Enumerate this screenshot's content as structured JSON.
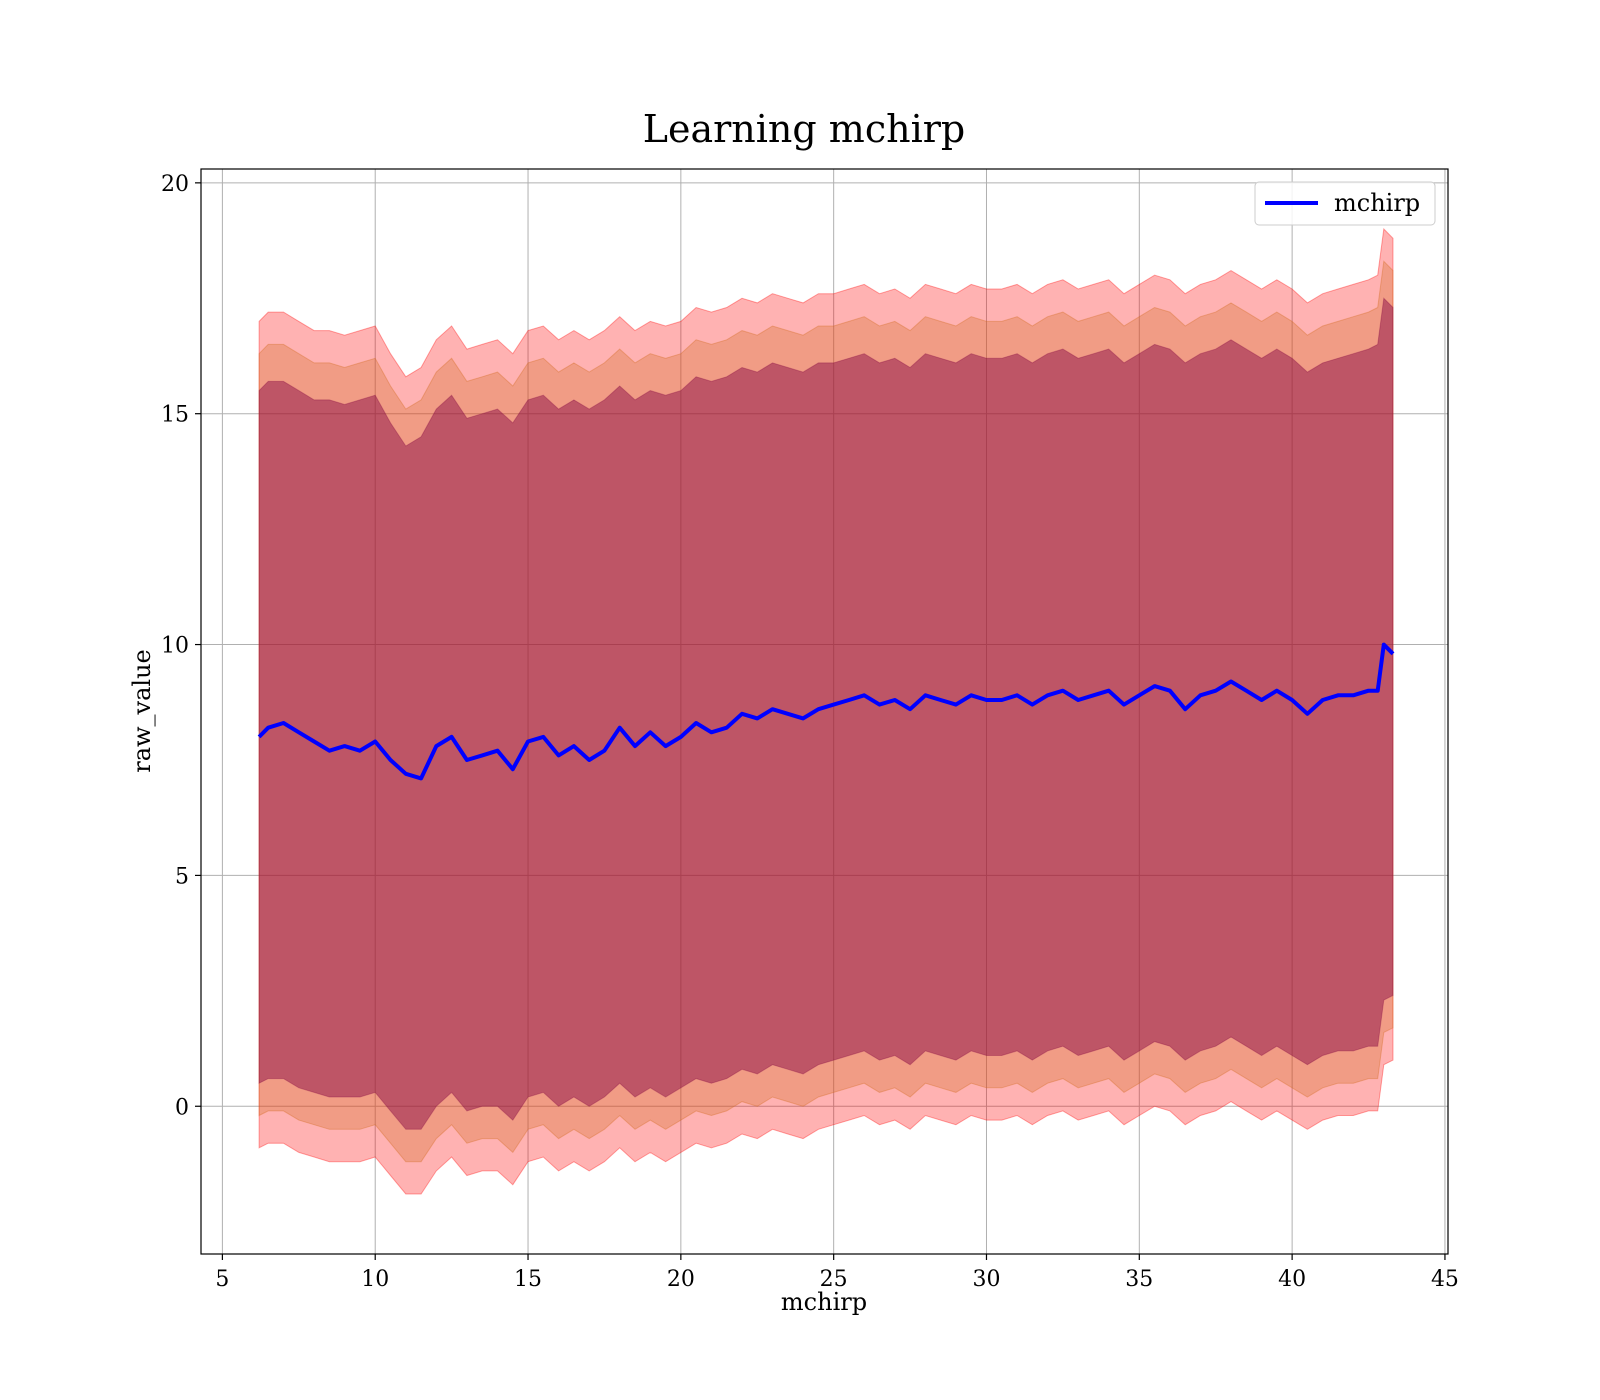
{
  "chart_data": {
    "type": "line",
    "title": "Learning mchirp",
    "xlabel": "mchirp",
    "ylabel": "raw_value",
    "xlim": [
      4.3,
      45.1
    ],
    "ylim": [
      -3.2,
      20.3
    ],
    "xticks": [
      5,
      10,
      15,
      20,
      25,
      30,
      35,
      40,
      45
    ],
    "yticks": [
      0,
      5,
      10,
      15,
      20
    ],
    "grid": true,
    "legend": {
      "placement": "top-right",
      "entries": [
        "mchirp"
      ]
    },
    "colors": {
      "line": "#0000ff",
      "band_outer": "#ff0000",
      "band_middle": "#d2691e",
      "band_inner": "#800040"
    },
    "series": [
      {
        "name": "mchirp",
        "x": [
          6.2,
          6.5,
          7.0,
          7.5,
          8.0,
          8.5,
          9.0,
          9.5,
          10.0,
          10.5,
          11.0,
          11.5,
          12.0,
          12.5,
          13.0,
          13.5,
          14.0,
          14.5,
          15.0,
          15.5,
          16.0,
          16.5,
          17.0,
          17.5,
          18.0,
          18.5,
          19.0,
          19.5,
          20.0,
          20.5,
          21.0,
          21.5,
          22.0,
          22.5,
          23.0,
          23.5,
          24.0,
          24.5,
          25.0,
          25.5,
          26.0,
          26.5,
          27.0,
          27.5,
          28.0,
          28.5,
          29.0,
          29.5,
          30.0,
          30.5,
          31.0,
          31.5,
          32.0,
          32.5,
          33.0,
          33.5,
          34.0,
          34.5,
          35.0,
          35.5,
          36.0,
          36.5,
          37.0,
          37.5,
          38.0,
          38.5,
          39.0,
          39.5,
          40.0,
          40.5,
          41.0,
          41.5,
          42.0,
          42.5,
          42.8,
          43.0,
          43.3
        ],
        "mean": [
          8.0,
          8.2,
          8.3,
          8.1,
          7.9,
          7.7,
          7.8,
          7.7,
          7.9,
          7.5,
          7.2,
          7.1,
          7.8,
          8.0,
          7.5,
          7.6,
          7.7,
          7.3,
          7.9,
          8.0,
          7.6,
          7.8,
          7.5,
          7.7,
          8.2,
          7.8,
          8.1,
          7.8,
          8.0,
          8.3,
          8.1,
          8.2,
          8.5,
          8.4,
          8.6,
          8.5,
          8.4,
          8.6,
          8.7,
          8.8,
          8.9,
          8.7,
          8.8,
          8.6,
          8.9,
          8.8,
          8.7,
          8.9,
          8.8,
          8.8,
          8.9,
          8.7,
          8.9,
          9.0,
          8.8,
          8.9,
          9.0,
          8.7,
          8.9,
          9.1,
          9.0,
          8.6,
          8.9,
          9.0,
          9.2,
          9.0,
          8.8,
          9.0,
          8.8,
          8.5,
          8.8,
          8.9,
          8.9,
          9.0,
          9.0,
          10.0,
          9.8
        ],
        "band_outer_upper": [
          17.0,
          17.2,
          17.2,
          17.0,
          16.8,
          16.8,
          16.7,
          16.8,
          16.9,
          16.3,
          15.8,
          16.0,
          16.6,
          16.9,
          16.4,
          16.5,
          16.6,
          16.3,
          16.8,
          16.9,
          16.6,
          16.8,
          16.6,
          16.8,
          17.1,
          16.8,
          17.0,
          16.9,
          17.0,
          17.3,
          17.2,
          17.3,
          17.5,
          17.4,
          17.6,
          17.5,
          17.4,
          17.6,
          17.6,
          17.7,
          17.8,
          17.6,
          17.7,
          17.5,
          17.8,
          17.7,
          17.6,
          17.8,
          17.7,
          17.7,
          17.8,
          17.6,
          17.8,
          17.9,
          17.7,
          17.8,
          17.9,
          17.6,
          17.8,
          18.0,
          17.9,
          17.6,
          17.8,
          17.9,
          18.1,
          17.9,
          17.7,
          17.9,
          17.7,
          17.4,
          17.6,
          17.7,
          17.8,
          17.9,
          18.0,
          19.0,
          18.8
        ],
        "band_outer_lower": [
          -0.9,
          -0.8,
          -0.8,
          -1.0,
          -1.1,
          -1.2,
          -1.2,
          -1.2,
          -1.1,
          -1.5,
          -1.9,
          -1.9,
          -1.4,
          -1.1,
          -1.5,
          -1.4,
          -1.4,
          -1.7,
          -1.2,
          -1.1,
          -1.4,
          -1.2,
          -1.4,
          -1.2,
          -0.9,
          -1.2,
          -1.0,
          -1.2,
          -1.0,
          -0.8,
          -0.9,
          -0.8,
          -0.6,
          -0.7,
          -0.5,
          -0.6,
          -0.7,
          -0.5,
          -0.4,
          -0.3,
          -0.2,
          -0.4,
          -0.3,
          -0.5,
          -0.2,
          -0.3,
          -0.4,
          -0.2,
          -0.3,
          -0.3,
          -0.2,
          -0.4,
          -0.2,
          -0.1,
          -0.3,
          -0.2,
          -0.1,
          -0.4,
          -0.2,
          0.0,
          -0.1,
          -0.4,
          -0.2,
          -0.1,
          0.1,
          -0.1,
          -0.3,
          -0.1,
          -0.3,
          -0.5,
          -0.3,
          -0.2,
          -0.2,
          -0.1,
          -0.1,
          0.9,
          1.0
        ],
        "band_middle_upper": [
          16.3,
          16.5,
          16.5,
          16.3,
          16.1,
          16.1,
          16.0,
          16.1,
          16.2,
          15.6,
          15.1,
          15.3,
          15.9,
          16.2,
          15.7,
          15.8,
          15.9,
          15.6,
          16.1,
          16.2,
          15.9,
          16.1,
          15.9,
          16.1,
          16.4,
          16.1,
          16.3,
          16.2,
          16.3,
          16.6,
          16.5,
          16.6,
          16.8,
          16.7,
          16.9,
          16.8,
          16.7,
          16.9,
          16.9,
          17.0,
          17.1,
          16.9,
          17.0,
          16.8,
          17.1,
          17.0,
          16.9,
          17.1,
          17.0,
          17.0,
          17.1,
          16.9,
          17.1,
          17.2,
          17.0,
          17.1,
          17.2,
          16.9,
          17.1,
          17.3,
          17.2,
          16.9,
          17.1,
          17.2,
          17.4,
          17.2,
          17.0,
          17.2,
          17.0,
          16.7,
          16.9,
          17.0,
          17.1,
          17.2,
          17.3,
          18.3,
          18.1
        ],
        "band_middle_lower": [
          -0.2,
          -0.1,
          -0.1,
          -0.3,
          -0.4,
          -0.5,
          -0.5,
          -0.5,
          -0.4,
          -0.8,
          -1.2,
          -1.2,
          -0.7,
          -0.4,
          -0.8,
          -0.7,
          -0.7,
          -1.0,
          -0.5,
          -0.4,
          -0.7,
          -0.5,
          -0.7,
          -0.5,
          -0.2,
          -0.5,
          -0.3,
          -0.5,
          -0.3,
          -0.1,
          -0.2,
          -0.1,
          0.1,
          0.0,
          0.2,
          0.1,
          0.0,
          0.2,
          0.3,
          0.4,
          0.5,
          0.3,
          0.4,
          0.2,
          0.5,
          0.4,
          0.3,
          0.5,
          0.4,
          0.4,
          0.5,
          0.3,
          0.5,
          0.6,
          0.4,
          0.5,
          0.6,
          0.3,
          0.5,
          0.7,
          0.6,
          0.3,
          0.5,
          0.6,
          0.8,
          0.6,
          0.4,
          0.6,
          0.4,
          0.2,
          0.4,
          0.5,
          0.5,
          0.6,
          0.6,
          1.6,
          1.7
        ],
        "band_inner_upper": [
          15.5,
          15.7,
          15.7,
          15.5,
          15.3,
          15.3,
          15.2,
          15.3,
          15.4,
          14.8,
          14.3,
          14.5,
          15.1,
          15.4,
          14.9,
          15.0,
          15.1,
          14.8,
          15.3,
          15.4,
          15.1,
          15.3,
          15.1,
          15.3,
          15.6,
          15.3,
          15.5,
          15.4,
          15.5,
          15.8,
          15.7,
          15.8,
          16.0,
          15.9,
          16.1,
          16.0,
          15.9,
          16.1,
          16.1,
          16.2,
          16.3,
          16.1,
          16.2,
          16.0,
          16.3,
          16.2,
          16.1,
          16.3,
          16.2,
          16.2,
          16.3,
          16.1,
          16.3,
          16.4,
          16.2,
          16.3,
          16.4,
          16.1,
          16.3,
          16.5,
          16.4,
          16.1,
          16.3,
          16.4,
          16.6,
          16.4,
          16.2,
          16.4,
          16.2,
          15.9,
          16.1,
          16.2,
          16.3,
          16.4,
          16.5,
          17.5,
          17.3
        ],
        "band_inner_lower": [
          0.5,
          0.6,
          0.6,
          0.4,
          0.3,
          0.2,
          0.2,
          0.2,
          0.3,
          -0.1,
          -0.5,
          -0.5,
          0.0,
          0.3,
          -0.1,
          0.0,
          0.0,
          -0.3,
          0.2,
          0.3,
          0.0,
          0.2,
          0.0,
          0.2,
          0.5,
          0.2,
          0.4,
          0.2,
          0.4,
          0.6,
          0.5,
          0.6,
          0.8,
          0.7,
          0.9,
          0.8,
          0.7,
          0.9,
          1.0,
          1.1,
          1.2,
          1.0,
          1.1,
          0.9,
          1.2,
          1.1,
          1.0,
          1.2,
          1.1,
          1.1,
          1.2,
          1.0,
          1.2,
          1.3,
          1.1,
          1.2,
          1.3,
          1.0,
          1.2,
          1.4,
          1.3,
          1.0,
          1.2,
          1.3,
          1.5,
          1.3,
          1.1,
          1.3,
          1.1,
          0.9,
          1.1,
          1.2,
          1.2,
          1.3,
          1.3,
          2.3,
          2.4
        ]
      }
    ]
  }
}
